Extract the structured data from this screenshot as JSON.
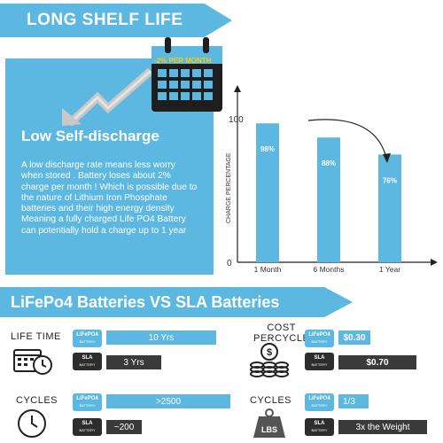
{
  "top_banner": {
    "label": "LONG SHELF LIFE"
  },
  "calendar": {
    "badge": "-2% PER MONTH"
  },
  "panel": {
    "title": "Low Self-discharge",
    "text": "A low discharge rate means less worry when stored . Battery loses about 2% charge per month ! Which is possible due to the nature of Lithium Iron Phosphate batteries and their high energy density Meaning a fully charged Life PO4 Battery can potentially hold a charge up to 1 year"
  },
  "chart_data": {
    "type": "bar",
    "categories": [
      "1 Month",
      "6 Months",
      "1 Year"
    ],
    "values": [
      98,
      88,
      76
    ],
    "data_labels": [
      "98%",
      "88%",
      "76%"
    ],
    "ylabel": "CHARGE PERCENTAGE",
    "yticks": [
      "0",
      "100"
    ],
    "ylim": [
      0,
      100
    ],
    "colors": {
      "bar": "#5cb8e0"
    }
  },
  "mid_banner": {
    "label": "LiFePo4 Batteries VS SLA Batteries"
  },
  "comparisons": {
    "life_time": {
      "label": "LIFE TIME",
      "lifepo4": "10 Yrs",
      "sla": "3 Yrs",
      "lifepo4_fill": 1.0,
      "sla_fill": 0.3
    },
    "cost": {
      "label_line1": "COST",
      "label_line2": "PERCYCLE",
      "lifepo4": "$0.30",
      "sla": "$0.70",
      "lifepo4_fill": 0.3,
      "sla_fill": 0.7
    },
    "cycles": {
      "label": "CYCLES",
      "lifepo4": ">2500",
      "sla": "~200",
      "lifepo4_fill": 1.0,
      "sla_fill": 0.08
    },
    "weight": {
      "label": "CYCLES",
      "lifepo4": "1/3",
      "sla": "3x the Weight",
      "lifepo4_fill": 0.33,
      "sla_fill": 1.0
    }
  },
  "chips": {
    "lifepo4_main": "LiFePO4",
    "lifepo4_sub": "BATTERY",
    "sla_main": "SLA",
    "sla_sub": "BATTERY"
  },
  "weight_icon_text": "LBS",
  "colors": {
    "accent": "#5cb8e0",
    "dark": "#3a3a3a"
  }
}
